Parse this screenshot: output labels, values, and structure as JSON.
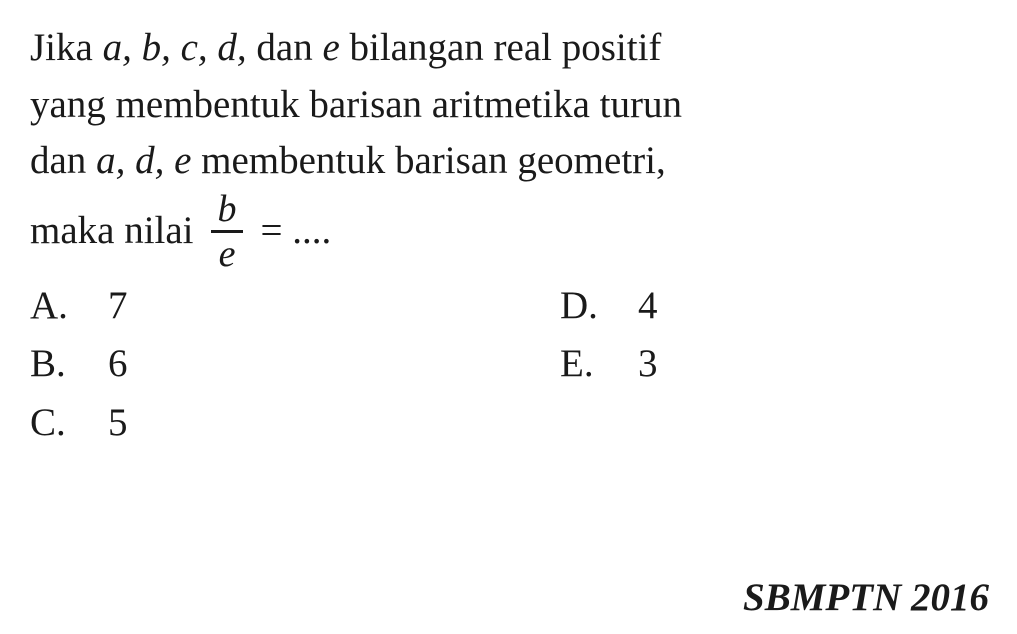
{
  "problem": {
    "line1_pre": "Jika ",
    "vars1": "a, b, c, d,",
    "line1_mid": " dan ",
    "var_e": "e",
    "line1_post": " bilangan real positif",
    "line2": "yang membentuk barisan aritmetika turun",
    "line3_pre": "dan ",
    "vars2": "a, d, e",
    "line3_post": " membentuk barisan geometri,",
    "line4_pre": "maka nilai ",
    "frac_num": "b",
    "frac_den": "e",
    "line4_post": " = ...."
  },
  "options": {
    "A": {
      "label": "A.",
      "value": "7"
    },
    "B": {
      "label": "B.",
      "value": "6"
    },
    "C": {
      "label": "C.",
      "value": "5"
    },
    "D": {
      "label": "D.",
      "value": "4"
    },
    "E": {
      "label": "E.",
      "value": "3"
    }
  },
  "source": "SBMPTN 2016",
  "style": {
    "font_family": "Georgia serif",
    "font_size_pt": 29,
    "text_color": "#1a1a1a",
    "background_color": "#ffffff"
  }
}
